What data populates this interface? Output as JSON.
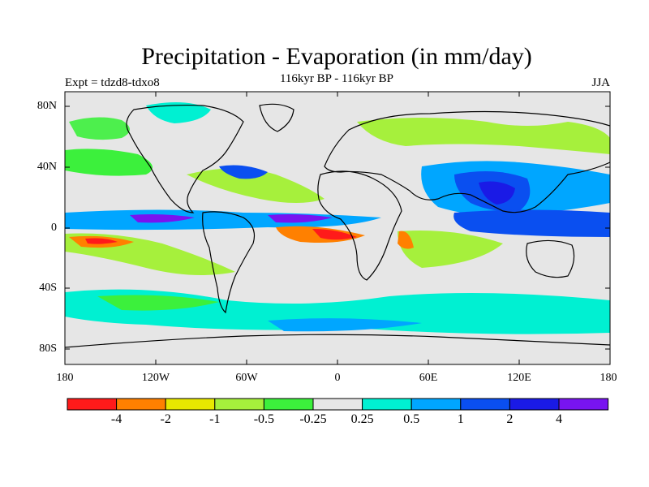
{
  "title": "Precipitation - Evaporation (in mm/day)",
  "subtitle": "116kyr BP - 116kyr BP",
  "experiment": "Expt = tdzd8-tdxo8",
  "season": "JJA",
  "lat_labels": [
    "80N",
    "40N",
    "0",
    "40S",
    "80S"
  ],
  "lon_labels": [
    "180",
    "120W",
    "60W",
    "0",
    "60E",
    "120E",
    "180"
  ],
  "colorbar": {
    "colors": [
      "#ff1a1a",
      "#ff8000",
      "#e8e800",
      "#a6f03c",
      "#3cf03c",
      "#e6e6e6",
      "#00f0d2",
      "#00a6ff",
      "#0a4ff0",
      "#1a1ae6",
      "#7814f0"
    ],
    "labels": [
      "-4",
      "-2",
      "-1",
      "-0.5",
      "-0.25",
      "0.25",
      "0.5",
      "1",
      "2",
      "4"
    ]
  }
}
